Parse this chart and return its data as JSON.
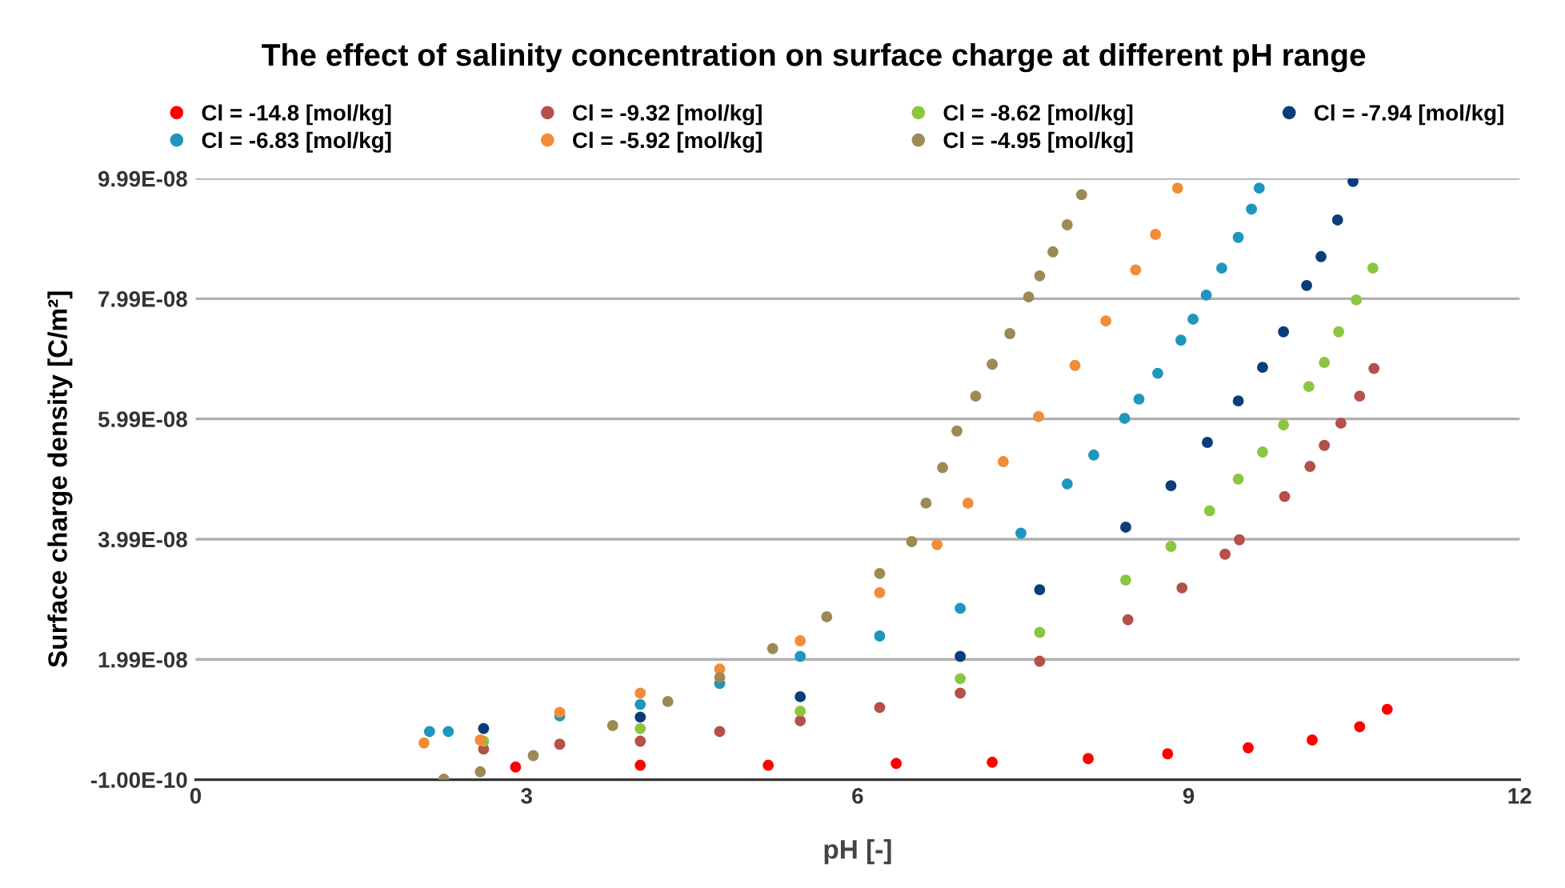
{
  "chart_data": {
    "type": "scatter",
    "title": "The effect of salinity concentration on surface charge at different pH range",
    "xlabel": "pH [-]",
    "ylabel": "Surface charge density [C/m²]",
    "xlim": [
      0,
      12
    ],
    "xticks": [
      0,
      3,
      6,
      9,
      12
    ],
    "ylim": [
      -1e-10,
      9.99e-08
    ],
    "yticks": [
      {
        "value": -1e-10,
        "label": "-1.00E-10"
      },
      {
        "value": 1.99e-08,
        "label": "1.99E-08"
      },
      {
        "value": 3.99e-08,
        "label": "3.99E-08"
      },
      {
        "value": 5.99e-08,
        "label": "5.99E-08"
      },
      {
        "value": 7.99e-08,
        "label": "7.99E-08"
      },
      {
        "value": 9.99e-08,
        "label": "9.99E-08"
      }
    ],
    "grid": "y",
    "legend": "top",
    "marker": "circle",
    "series": [
      {
        "name": "Cl = -14.8 [mol/kg]",
        "color": "#ff0000",
        "x": [
          2.9,
          4.03,
          5.19,
          6.35,
          7.22,
          8.09,
          8.81,
          9.54,
          10.12,
          10.55,
          10.8
        ],
        "values": [
          2e-09,
          2.3e-09,
          2.3e-09,
          2.6e-09,
          2.8e-09,
          3.4e-09,
          4.2e-09,
          5.2e-09,
          6.5e-09,
          8.7e-09,
          1.16e-08
        ]
      },
      {
        "name": "Cl = -9.32 [mol/kg]",
        "color": "#b5504a",
        "x": [
          2.61,
          3.3,
          4.03,
          4.75,
          5.48,
          6.2,
          6.93,
          7.65,
          8.45,
          8.94,
          9.33,
          9.46,
          9.87,
          10.1,
          10.23,
          10.38,
          10.55,
          10.68
        ],
        "values": [
          5e-09,
          5.8e-09,
          6.3e-09,
          7.9e-09,
          9.7e-09,
          1.19e-08,
          1.43e-08,
          1.96e-08,
          2.65e-08,
          3.18e-08,
          3.74e-08,
          3.98e-08,
          4.7e-08,
          5.2e-08,
          5.55e-08,
          5.92e-08,
          6.37e-08,
          6.83e-08
        ]
      },
      {
        "name": "Cl = -8.62 [mol/kg]",
        "color": "#8cc63f",
        "x": [
          2.61,
          4.03,
          5.48,
          6.93,
          7.65,
          8.43,
          8.84,
          9.19,
          9.45,
          9.67,
          9.86,
          10.09,
          10.23,
          10.36,
          10.52,
          10.67
        ],
        "values": [
          6.3e-09,
          8.4e-09,
          1.13e-08,
          1.67e-08,
          2.44e-08,
          3.31e-08,
          3.87e-08,
          4.46e-08,
          4.99e-08,
          5.44e-08,
          5.89e-08,
          6.53e-08,
          6.93e-08,
          7.44e-08,
          7.97e-08,
          8.5e-08
        ]
      },
      {
        "name": "Cl = -7.94 [mol/kg]",
        "color": "#0b3d7a",
        "x": [
          2.61,
          4.03,
          5.48,
          6.93,
          7.65,
          8.43,
          8.84,
          9.17,
          9.45,
          9.67,
          9.86,
          10.07,
          10.2,
          10.35,
          10.49
        ],
        "values": [
          8.4e-09,
          1.03e-08,
          1.37e-08,
          2.04e-08,
          3.15e-08,
          4.19e-08,
          4.88e-08,
          5.6e-08,
          6.29e-08,
          6.85e-08,
          7.44e-08,
          8.21e-08,
          8.69e-08,
          9.3e-08,
          9.94e-08
        ]
      },
      {
        "name": "Cl = -6.83 [mol/kg]",
        "color": "#1f96c0",
        "x": [
          2.12,
          2.29,
          3.3,
          4.03,
          4.75,
          5.48,
          6.2,
          6.93,
          7.48,
          7.9,
          8.14,
          8.42,
          8.55,
          8.72,
          8.93,
          9.04,
          9.16,
          9.3,
          9.45,
          9.57,
          9.64
        ],
        "values": [
          7.9e-09,
          7.9e-09,
          1.05e-08,
          1.24e-08,
          1.59e-08,
          2.04e-08,
          2.38e-08,
          2.84e-08,
          4.09e-08,
          4.91e-08,
          5.39e-08,
          6e-08,
          6.32e-08,
          6.75e-08,
          7.3e-08,
          7.65e-08,
          8.05e-08,
          8.5e-08,
          9.01e-08,
          9.48e-08,
          9.83e-08
        ]
      },
      {
        "name": "Cl = -5.92 [mol/kg]",
        "color": "#f28c38",
        "x": [
          2.07,
          2.58,
          3.3,
          4.03,
          4.75,
          5.48,
          6.2,
          6.72,
          7.0,
          7.32,
          7.64,
          7.97,
          8.25,
          8.52,
          8.7,
          8.9
        ],
        "values": [
          6e-09,
          6.5e-09,
          1.11e-08,
          1.43e-08,
          1.83e-08,
          2.3e-08,
          3.1e-08,
          3.9e-08,
          4.59e-08,
          5.28e-08,
          6.03e-08,
          6.88e-08,
          7.62e-08,
          8.47e-08,
          9.06e-08,
          9.83e-08
        ]
      },
      {
        "name": "Cl = -4.95 [mol/kg]",
        "color": "#9c8a55",
        "x": [
          2.25,
          2.58,
          3.06,
          3.78,
          4.28,
          4.75,
          5.23,
          5.72,
          6.2,
          6.49,
          6.62,
          6.77,
          6.9,
          7.07,
          7.22,
          7.38,
          7.55,
          7.65,
          7.77,
          7.9,
          8.03
        ],
        "values": [
          0.0,
          1.2e-09,
          3.9e-09,
          8.9e-09,
          1.29e-08,
          1.69e-08,
          2.17e-08,
          2.7e-08,
          3.42e-08,
          3.95e-08,
          4.59e-08,
          5.18e-08,
          5.79e-08,
          6.37e-08,
          6.9e-08,
          7.41e-08,
          8.02e-08,
          8.37e-08,
          8.77e-08,
          9.22e-08,
          9.72e-08
        ]
      }
    ]
  }
}
